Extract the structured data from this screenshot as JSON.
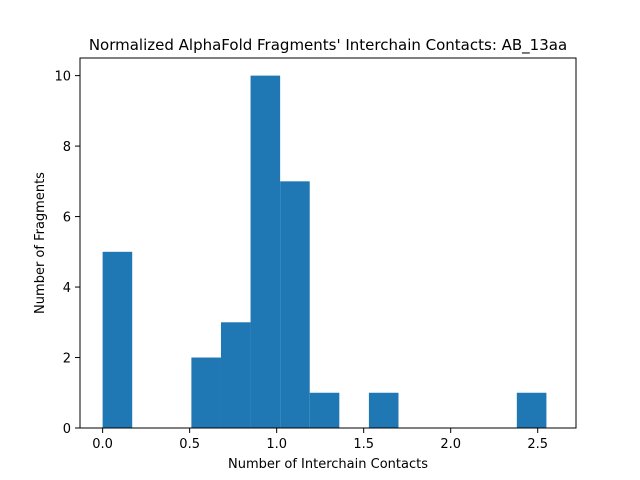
{
  "chart_data": {
    "type": "bar",
    "title": "Normalized AlphaFold Fragments' Interchain Contacts: AB_13aa",
    "xlabel": "Number of Interchain Contacts",
    "ylabel": "Number of Fragments",
    "bar_color": "#1f77b4",
    "bin_edges": [
      0.0,
      0.17,
      0.34,
      0.51,
      0.68,
      0.85,
      1.02,
      1.19,
      1.36,
      1.53,
      1.7,
      1.87,
      2.04,
      2.21,
      2.38,
      2.55
    ],
    "bin_width": 0.17,
    "values": [
      5,
      0,
      0,
      2,
      3,
      10,
      7,
      1,
      0,
      1,
      0,
      0,
      0,
      0,
      1
    ],
    "xlim": [
      -0.13,
      2.72
    ],
    "ylim": [
      0,
      10.5
    ],
    "xticks": [
      "0.0",
      "0.5",
      "1.0",
      "1.5",
      "2.0",
      "2.5"
    ],
    "yticks": [
      "0",
      "2",
      "4",
      "6",
      "8",
      "10"
    ],
    "grid": false
  }
}
